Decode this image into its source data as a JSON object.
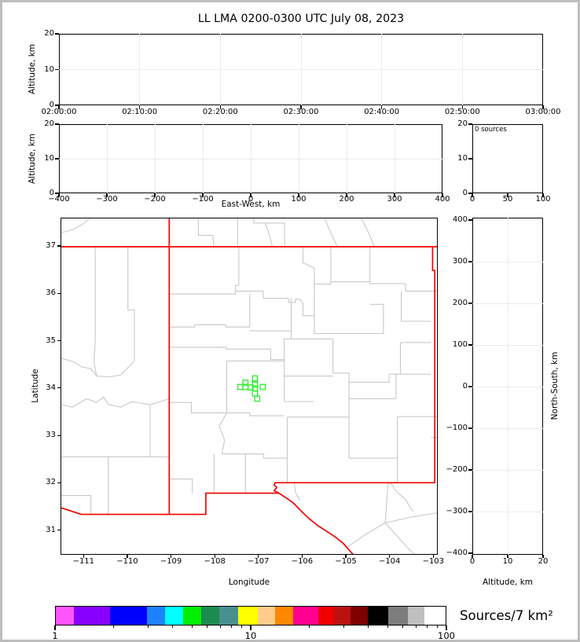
{
  "title": "LL LMA 0200-0300 UTC July 08, 2023",
  "colors": {
    "state_border": "#f20000",
    "county_border": "#c8c8c8",
    "station_marker": "#3df03d",
    "gridline": "#ececec",
    "frame": "#bdbdbd"
  },
  "panels": {
    "time_height": {
      "ylabel": "Altitude, km",
      "x_ticks": [
        "02:00:00",
        "02:10:00",
        "02:20:00",
        "02:30:00",
        "02:40:00",
        "02:50:00",
        "03:00:00"
      ],
      "y_ticks": [
        "0",
        "10",
        "20"
      ]
    },
    "ew_height": {
      "ylabel": "Altitude, km",
      "xlabel": "East-West, km",
      "x_ticks": [
        "−400",
        "−300",
        "−200",
        "−100",
        "0",
        "100",
        "200",
        "300",
        "400"
      ],
      "y_ticks": [
        "0",
        "10",
        "20"
      ]
    },
    "histogram": {
      "annotation": "0 sources",
      "x_ticks": [
        "0",
        "50",
        "100"
      ],
      "y_ticks": [
        "0",
        "10",
        "20"
      ]
    },
    "map": {
      "xlabel": "Longitude",
      "ylabel": "Latitude",
      "x_ticks": [
        "−111",
        "−110",
        "−109",
        "−108",
        "−107",
        "−106",
        "−105",
        "−104",
        "−103"
      ],
      "y_ticks": [
        "31",
        "32",
        "33",
        "34",
        "35",
        "36",
        "37"
      ]
    },
    "ns_height": {
      "xlabel": "Altitude, km",
      "ylabel_right": "North-South, km",
      "x_ticks": [
        "0",
        "10",
        "20"
      ],
      "y_ticks": [
        "400",
        "300",
        "200",
        "100",
        "0",
        "−100",
        "−200",
        "−300",
        "−400"
      ]
    }
  },
  "colorbar": {
    "title": "Sources/7 km²",
    "scale": "log",
    "range": [
      1,
      100
    ],
    "tick_labels": [
      "1",
      "10",
      "100"
    ],
    "minor_tick_values": [
      2,
      3,
      4,
      5,
      6,
      7,
      8,
      9,
      20,
      30,
      40,
      50,
      60,
      70,
      80,
      90
    ],
    "segments": [
      {
        "color": "#ff55ff",
        "w": 4.7
      },
      {
        "color": "#8800ff",
        "w": 9.2
      },
      {
        "color": "#0000ff",
        "w": 9.4
      },
      {
        "color": "#1e82ff",
        "w": 4.8
      },
      {
        "color": "#00ffff",
        "w": 4.6
      },
      {
        "color": "#00f000",
        "w": 4.6
      },
      {
        "color": "#1a8c50",
        "w": 4.6
      },
      {
        "color": "#4a9090",
        "w": 4.8
      },
      {
        "color": "#ffff00",
        "w": 5.2
      },
      {
        "color": "#ffcc8c",
        "w": 4.4
      },
      {
        "color": "#ff8800",
        "w": 4.6
      },
      {
        "color": "#ff0090",
        "w": 6.4
      },
      {
        "color": "#f00000",
        "w": 4.0
      },
      {
        "color": "#bb1111",
        "w": 4.4
      },
      {
        "color": "#7e0000",
        "w": 4.4
      },
      {
        "color": "#000000",
        "w": 5.2
      },
      {
        "color": "#7d7d7d",
        "w": 5.0
      },
      {
        "color": "#bfbfbf",
        "w": 4.2
      },
      {
        "color": "#ffffff",
        "w": 5.5
      }
    ]
  },
  "chart_data": [
    {
      "id": "time_height",
      "type": "scatter",
      "ylabel": "Altitude, km",
      "xlim": [
        "02:00:00",
        "03:00:00"
      ],
      "ylim": [
        0,
        20
      ],
      "x_tick_labels": [
        "02:00:00",
        "02:10:00",
        "02:20:00",
        "02:30:00",
        "02:40:00",
        "02:50:00",
        "03:00:00"
      ],
      "grid": true,
      "points": []
    },
    {
      "id": "ew_height",
      "type": "scatter",
      "xlabel": "East-West, km",
      "ylabel": "Altitude, km",
      "xlim": [
        -400,
        400
      ],
      "ylim": [
        0,
        20
      ],
      "grid": true,
      "points": []
    },
    {
      "id": "alt_histogram",
      "type": "line",
      "annotation": "0 sources",
      "xlim": [
        0,
        100
      ],
      "ylim": [
        0,
        20
      ],
      "grid": false,
      "points": []
    },
    {
      "id": "plan_map",
      "type": "scatter",
      "xlabel": "Longitude",
      "ylabel": "Latitude",
      "xlim": [
        -111.53,
        -102.9
      ],
      "ylim": [
        30.49,
        37.6
      ],
      "grid": false,
      "points": [],
      "station_squares": 10
    },
    {
      "id": "ns_height",
      "type": "scatter",
      "xlabel": "Altitude, km",
      "ylabel": "North-South, km",
      "xlim": [
        0,
        20
      ],
      "ylim": [
        -400,
        400
      ],
      "grid": true,
      "points": []
    },
    {
      "id": "density_colorbar",
      "type": "heatmap",
      "scale": "log",
      "range": [
        1,
        100
      ],
      "title": "Sources/7 km²",
      "n_colors": 19
    }
  ],
  "map_geometry": {
    "lon_range": [
      -111.53,
      -102.9
    ],
    "lat_range": [
      30.49,
      37.6
    ],
    "stations": [
      [
        -107.08,
        34.21
      ],
      [
        -107.3,
        34.12
      ],
      [
        -107.42,
        34.03
      ],
      [
        -107.3,
        34.03
      ],
      [
        -107.18,
        34.02
      ],
      [
        -107.08,
        34.08
      ],
      [
        -107.08,
        34.0
      ],
      [
        -106.9,
        34.03
      ],
      [
        -107.08,
        33.89
      ],
      [
        -107.03,
        33.78
      ]
    ],
    "state_lines": [
      [
        [
          -111.53,
          37.0
        ],
        [
          -102.9,
          37.0
        ]
      ],
      [
        [
          -109.05,
          37.6
        ],
        [
          -109.05,
          31.33
        ]
      ],
      [
        [
          -103.0,
          37.0
        ],
        [
          -103.0,
          36.5
        ],
        [
          -102.95,
          36.5
        ],
        [
          -102.95,
          32.0
        ],
        [
          -106.62,
          32.0
        ],
        [
          -106.64,
          31.95
        ],
        [
          -106.58,
          31.9
        ],
        [
          -106.64,
          31.83
        ],
        [
          -106.53,
          31.78
        ],
        [
          -108.21,
          31.78
        ],
        [
          -108.21,
          31.33
        ],
        [
          -111.07,
          31.33
        ],
        [
          -111.37,
          31.42
        ],
        [
          -111.53,
          31.47
        ]
      ],
      [
        [
          -106.53,
          31.78
        ],
        [
          -106.35,
          31.67
        ],
        [
          -106.2,
          31.57
        ],
        [
          -106.02,
          31.4
        ],
        [
          -105.85,
          31.25
        ],
        [
          -105.65,
          31.1
        ],
        [
          -105.45,
          30.98
        ],
        [
          -105.25,
          30.86
        ],
        [
          -105.06,
          30.72
        ],
        [
          -104.92,
          30.58
        ],
        [
          -104.8,
          30.45
        ]
      ]
    ],
    "county_lines": [
      [
        [
          -107.45,
          37.0
        ],
        [
          -107.45,
          36.18
        ],
        [
          -107.53,
          36.18
        ],
        [
          -107.53,
          36.0
        ]
      ],
      [
        [
          -109.05,
          36.0
        ],
        [
          -107.53,
          36.0
        ]
      ],
      [
        [
          -107.53,
          36.06
        ],
        [
          -106.89,
          36.06
        ],
        [
          -106.89,
          35.91
        ],
        [
          -106.31,
          35.91
        ]
      ],
      [
        [
          -106.31,
          35.91
        ],
        [
          -106.31,
          35.82
        ],
        [
          -106.15,
          35.82
        ],
        [
          -106.15,
          35.89
        ],
        [
          -106.05,
          35.89
        ],
        [
          -105.98,
          35.8
        ],
        [
          -105.98,
          35.54
        ],
        [
          -105.72,
          35.54
        ]
      ],
      [
        [
          -105.98,
          37.0
        ],
        [
          -105.98,
          36.66
        ],
        [
          -105.72,
          36.55
        ],
        [
          -105.72,
          36.01
        ]
      ],
      [
        [
          -105.34,
          37.0
        ],
        [
          -105.34,
          36.26
        ]
      ],
      [
        [
          -104.44,
          37.0
        ],
        [
          -104.44,
          36.22
        ]
      ],
      [
        [
          -105.72,
          36.21
        ],
        [
          -105.34,
          36.21
        ],
        [
          -105.34,
          36.26
        ],
        [
          -104.44,
          36.26
        ],
        [
          -104.44,
          36.22
        ],
        [
          -103.62,
          36.22
        ],
        [
          -103.62,
          36.06
        ],
        [
          -102.9,
          36.06
        ]
      ],
      [
        [
          -107.2,
          36.0
        ],
        [
          -107.2,
          35.3
        ]
      ],
      [
        [
          -109.05,
          35.3
        ],
        [
          -108.47,
          35.3
        ],
        [
          -108.47,
          35.35
        ],
        [
          -107.75,
          35.35
        ],
        [
          -107.75,
          35.3
        ],
        [
          -107.2,
          35.3
        ]
      ],
      [
        [
          -107.2,
          35.22
        ],
        [
          -106.25,
          35.22
        ]
      ],
      [
        [
          -106.25,
          35.91
        ],
        [
          -106.25,
          35.05
        ]
      ],
      [
        [
          -105.72,
          36.01
        ],
        [
          -105.72,
          35.16
        ],
        [
          -104.13,
          35.16
        ]
      ],
      [
        [
          -106.41,
          35.05
        ],
        [
          -105.29,
          35.05
        ]
      ],
      [
        [
          -106.41,
          35.05
        ],
        [
          -106.41,
          33.72
        ]
      ],
      [
        [
          -109.05,
          34.87
        ],
        [
          -107.74,
          34.87
        ],
        [
          -107.74,
          34.83
        ],
        [
          -106.72,
          34.83
        ],
        [
          -106.72,
          34.61
        ],
        [
          -106.41,
          34.61
        ]
      ],
      [
        [
          -107.73,
          34.58
        ],
        [
          -106.41,
          34.58
        ]
      ],
      [
        [
          -107.73,
          34.58
        ],
        [
          -107.73,
          33.48
        ]
      ],
      [
        [
          -106.41,
          34.26
        ],
        [
          -105.29,
          34.26
        ]
      ],
      [
        [
          -105.29,
          35.05
        ],
        [
          -105.29,
          34.32
        ],
        [
          -104.92,
          34.32
        ],
        [
          -104.92,
          34.13
        ],
        [
          -104.0,
          34.13
        ],
        [
          -104.0,
          34.3
        ]
      ],
      [
        [
          -104.44,
          35.78
        ],
        [
          -104.13,
          35.78
        ],
        [
          -104.13,
          35.16
        ]
      ],
      [
        [
          -103.72,
          36.06
        ],
        [
          -103.72,
          35.42
        ],
        [
          -103.04,
          35.42
        ]
      ],
      [
        [
          -103.74,
          34.97
        ],
        [
          -103.04,
          34.97
        ]
      ],
      [
        [
          -103.74,
          34.97
        ],
        [
          -103.74,
          34.3
        ]
      ],
      [
        [
          -104.0,
          34.3
        ],
        [
          -103.04,
          34.3
        ]
      ],
      [
        [
          -103.84,
          34.3
        ],
        [
          -103.84,
          33.78
        ]
      ],
      [
        [
          -104.92,
          33.78
        ],
        [
          -103.84,
          33.78
        ]
      ],
      [
        [
          -103.81,
          33.4
        ],
        [
          -102.9,
          33.4
        ]
      ],
      [
        [
          -103.81,
          33.4
        ],
        [
          -103.81,
          32.0
        ]
      ],
      [
        [
          -104.92,
          34.13
        ],
        [
          -104.92,
          32.52
        ]
      ],
      [
        [
          -104.92,
          32.52
        ],
        [
          -103.81,
          32.52
        ]
      ],
      [
        [
          -103.04,
          32.96
        ],
        [
          -102.9,
          32.96
        ]
      ],
      [
        [
          -106.41,
          33.72
        ],
        [
          -105.73,
          33.72
        ]
      ],
      [
        [
          -106.34,
          33.39
        ],
        [
          -104.92,
          33.39
        ]
      ],
      [
        [
          -106.34,
          33.39
        ],
        [
          -106.34,
          32.0
        ]
      ],
      [
        [
          -107.73,
          33.48
        ],
        [
          -107.2,
          33.48
        ],
        [
          -107.2,
          33.42
        ],
        [
          -106.41,
          33.42
        ]
      ],
      [
        [
          -107.73,
          33.48
        ],
        [
          -107.9,
          33.2
        ],
        [
          -107.78,
          32.9
        ],
        [
          -107.84,
          32.61
        ]
      ],
      [
        [
          -107.84,
          32.61
        ],
        [
          -106.88,
          32.61
        ],
        [
          -106.88,
          32.52
        ],
        [
          -106.34,
          32.52
        ]
      ],
      [
        [
          -109.05,
          32.08
        ],
        [
          -108.52,
          32.08
        ],
        [
          -108.52,
          31.78
        ]
      ],
      [
        [
          -108.02,
          32.61
        ],
        [
          -108.02,
          31.78
        ]
      ],
      [
        [
          -107.3,
          32.61
        ],
        [
          -107.3,
          31.78
        ]
      ],
      [
        [
          -109.05,
          33.7
        ],
        [
          -108.54,
          33.7
        ],
        [
          -108.54,
          33.48
        ],
        [
          -107.73,
          33.48
        ]
      ],
      [
        [
          -110.0,
          37.0
        ],
        [
          -110.0,
          35.66
        ],
        [
          -109.85,
          35.66
        ],
        [
          -109.85,
          34.58
        ]
      ],
      [
        [
          -110.75,
          37.0
        ],
        [
          -110.75,
          35.0
        ],
        [
          -110.78,
          34.55
        ],
        [
          -110.72,
          34.26
        ]
      ],
      [
        [
          -111.53,
          34.64
        ],
        [
          -111.25,
          34.56
        ],
        [
          -111.05,
          34.45
        ],
        [
          -110.85,
          34.42
        ],
        [
          -110.72,
          34.26
        ],
        [
          -110.45,
          34.24
        ],
        [
          -110.17,
          34.28
        ],
        [
          -109.85,
          34.58
        ]
      ],
      [
        [
          -111.53,
          33.66
        ],
        [
          -111.28,
          33.6
        ],
        [
          -110.95,
          33.78
        ],
        [
          -110.72,
          33.7
        ],
        [
          -110.56,
          33.82
        ],
        [
          -110.45,
          33.66
        ],
        [
          -110.17,
          33.6
        ],
        [
          -109.9,
          33.72
        ],
        [
          -109.49,
          33.65
        ],
        [
          -109.05,
          33.78
        ]
      ],
      [
        [
          -109.49,
          33.65
        ],
        [
          -109.49,
          32.55
        ]
      ],
      [
        [
          -111.53,
          32.55
        ],
        [
          -109.05,
          32.55
        ]
      ],
      [
        [
          -110.45,
          32.55
        ],
        [
          -110.45,
          31.33
        ]
      ],
      [
        [
          -111.53,
          31.73
        ],
        [
          -110.85,
          31.73
        ],
        [
          -110.85,
          31.33
        ]
      ],
      [
        [
          -111.53,
          37.3
        ],
        [
          -111.28,
          37.36
        ],
        [
          -111.05,
          37.47
        ],
        [
          -110.88,
          37.6
        ]
      ],
      [
        [
          -107.48,
          37.6
        ],
        [
          -107.48,
          37.0
        ]
      ],
      [
        [
          -107.11,
          37.6
        ],
        [
          -107.11,
          37.5
        ],
        [
          -106.4,
          37.5
        ],
        [
          -106.4,
          37.0
        ]
      ],
      [
        [
          -106.85,
          37.5
        ],
        [
          -106.76,
          37.28
        ],
        [
          -106.68,
          37.0
        ]
      ],
      [
        [
          -105.48,
          37.6
        ],
        [
          -105.33,
          37.28
        ],
        [
          -105.19,
          37.0
        ]
      ],
      [
        [
          -104.64,
          37.6
        ],
        [
          -104.46,
          37.28
        ],
        [
          -104.34,
          37.0
        ]
      ],
      [
        [
          -108.38,
          37.6
        ],
        [
          -108.38,
          37.24
        ],
        [
          -108.05,
          37.24
        ],
        [
          -108.02,
          37.0
        ]
      ],
      [
        [
          -106.18,
          32.0
        ],
        [
          -106.15,
          31.8
        ],
        [
          -106.05,
          31.62
        ]
      ],
      [
        [
          -104.02,
          32.0
        ],
        [
          -104.05,
          31.65
        ],
        [
          -104.09,
          31.15
        ]
      ],
      [
        [
          -104.09,
          31.15
        ],
        [
          -104.55,
          30.9
        ],
        [
          -104.95,
          30.64
        ]
      ],
      [
        [
          -104.09,
          31.15
        ],
        [
          -103.55,
          30.6
        ],
        [
          -103.42,
          30.49
        ]
      ],
      [
        [
          -104.09,
          31.15
        ],
        [
          -103.45,
          31.28
        ],
        [
          -102.9,
          31.36
        ]
      ],
      [
        [
          -103.97,
          32.0
        ],
        [
          -103.82,
          31.8
        ],
        [
          -103.62,
          31.65
        ],
        [
          -103.52,
          31.48
        ],
        [
          -103.45,
          31.4
        ]
      ]
    ]
  }
}
